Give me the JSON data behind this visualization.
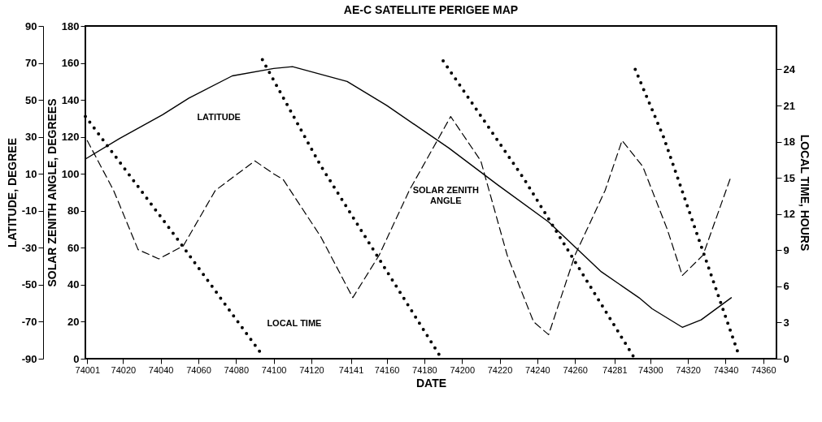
{
  "chart_data": {
    "type": "line",
    "title": "AE-C SATELLITE PERIGEE MAP",
    "xlabel": "DATE",
    "ylabel": "LATITUDE, DEGREE",
    "y2label": "SOLAR ZENITH ANGLE, DEGREES",
    "y3label": "LOCAL TIME, HOURS",
    "xlim": [
      74000,
      74367
    ],
    "xticks": [
      74001,
      74020,
      74040,
      74060,
      74080,
      74100,
      74120,
      74141,
      74160,
      74180,
      74200,
      74220,
      74240,
      74260,
      74281,
      74300,
      74320,
      74340,
      74360
    ],
    "ylim": [
      -90,
      90
    ],
    "yticks": [
      -90,
      -70,
      -50,
      -30,
      -10,
      10,
      30,
      50,
      70,
      90
    ],
    "y2lim": [
      0,
      180
    ],
    "y2ticks": [
      0,
      20,
      40,
      60,
      80,
      100,
      120,
      140,
      160,
      180
    ],
    "y3lim": [
      0,
      27.6
    ],
    "y3ticks": [
      0,
      3,
      6,
      9,
      12,
      15,
      18,
      21,
      24
    ],
    "series": [
      {
        "name": "LATITUDE",
        "color": "#000000",
        "line_style": "solid",
        "x": [
          74000,
          74018,
          74041,
          74055,
          74078,
          74100,
          74110,
          74139,
          74160,
          74193,
          74219,
          74246,
          74274,
          74294,
          74301,
          74317,
          74327,
          74343
        ],
        "values": [
          18,
          29,
          42,
          51,
          63,
          67,
          68,
          60,
          47,
          24,
          4,
          -16,
          -43,
          -57,
          -63,
          -73,
          -69,
          -57
        ]
      },
      {
        "name": "SOLAR ZENITH\nANGLE",
        "color": "#000000",
        "line_style": "dashed",
        "axis": "y2",
        "x": [
          74001,
          74015,
          74028,
          74039,
          74052,
          74069,
          74090,
          74100,
          74105,
          74125,
          74142,
          74156,
          74172,
          74194,
          74210,
          74224,
          74238,
          74246,
          74260,
          74276,
          74285,
          74296,
          74309,
          74317,
          74328,
          74343
        ],
        "values": [
          118,
          91,
          59,
          54,
          61,
          91,
          107,
          100,
          97,
          66,
          33,
          56,
          91,
          131,
          107,
          56,
          20,
          13,
          56,
          91,
          118,
          104,
          70,
          45,
          56,
          99
        ]
      },
      {
        "name": "LOCAL TIME",
        "color": "#000000",
        "line_style": "dotted",
        "axis": "y3",
        "x": [
          74000,
          74049,
          74093
        ],
        "values": [
          20.1,
          9.9,
          0.5
        ]
      },
      {
        "color": "#000000",
        "line_style": "dotted",
        "axis": "y3",
        "x": [
          74094,
          74125,
          74188
        ],
        "values": [
          24.8,
          16,
          0.3
        ]
      },
      {
        "color": "#000000",
        "line_style": "dotted",
        "axis": "y3",
        "x": [
          74190,
          74233,
          74291
        ],
        "values": [
          24.7,
          14.9,
          0.2
        ]
      },
      {
        "color": "#000000",
        "line_style": "dotted",
        "axis": "y3",
        "x": [
          74292,
          74307,
          74347
        ],
        "values": [
          24,
          18.4,
          0.3
        ]
      }
    ]
  }
}
